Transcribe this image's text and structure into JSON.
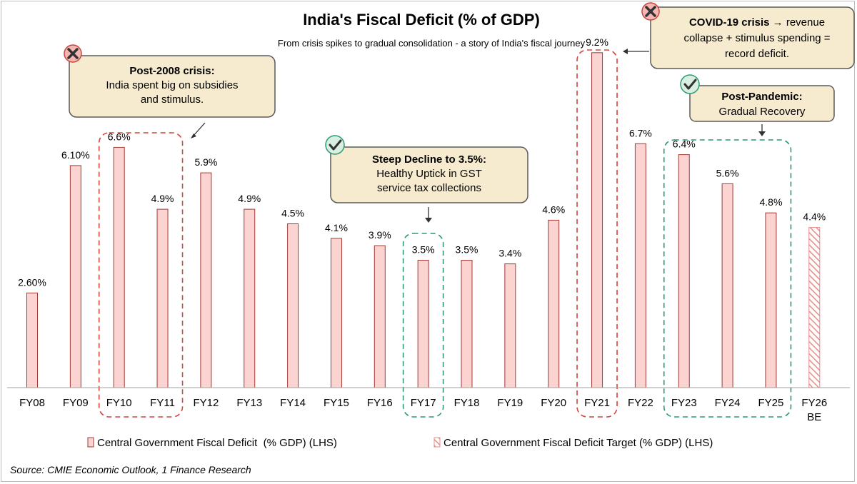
{
  "colors": {
    "bar_fill": "#fbd3d1",
    "bar_stroke": "#a33a35",
    "target_hatch": "#e98b87",
    "crisis_border": "#d0473c",
    "recovery_border": "#2e9a73",
    "callout_fill": "#f6ebcf",
    "callout_stroke": "#5a5a5a",
    "axis": "#a0a0a0"
  },
  "chart_data": {
    "type": "bar",
    "title": "India's Fiscal Deficit (% of GDP)",
    "subtitle": "From crisis spikes to gradual consolidation - a story of India's fiscal journey",
    "categories": [
      "FY08",
      "FY09",
      "FY10",
      "FY11",
      "FY12",
      "FY13",
      "FY14",
      "FY15",
      "FY16",
      "FY17",
      "FY18",
      "FY19",
      "FY20",
      "FY21",
      "FY22",
      "FY23",
      "FY24",
      "FY25",
      "FY26 BE"
    ],
    "series": [
      {
        "name": "Central Government Fiscal Deficit  (% GDP) (LHS)",
        "values": [
          2.6,
          6.1,
          6.6,
          4.9,
          5.9,
          4.9,
          4.5,
          4.1,
          3.9,
          3.5,
          3.5,
          3.4,
          4.6,
          9.2,
          6.7,
          6.4,
          5.6,
          4.8,
          null
        ],
        "labels": [
          "2.60%",
          "6.10%",
          "6.6%",
          "4.9%",
          "5.9%",
          "4.9%",
          "4.5%",
          "4.1%",
          "3.9%",
          "3.5%",
          "3.5%",
          "3.4%",
          "4.6%",
          "9.2%",
          "6.7%",
          "6.4%",
          "5.6%",
          "4.8%",
          ""
        ]
      },
      {
        "name": "Central Government Fiscal Deficit Target (% GDP) (LHS)",
        "values": [
          null,
          null,
          null,
          null,
          null,
          null,
          null,
          null,
          null,
          null,
          null,
          null,
          null,
          null,
          null,
          null,
          null,
          null,
          4.4
        ],
        "labels": [
          "",
          "",
          "",
          "",
          "",
          "",
          "",
          "",
          "",
          "",
          "",
          "",
          "",
          "",
          "",
          "",
          "",
          "",
          "4.4%"
        ]
      }
    ],
    "ylim": [
      0,
      10
    ],
    "grid": false,
    "legend_position": "bottom",
    "source": "Source: CMIE Economic Outlook, 1 Finance Research",
    "highlights": [
      {
        "type": "crisis",
        "from": "FY10",
        "to": "FY11"
      },
      {
        "type": "recovery",
        "from": "FY17",
        "to": "FY17"
      },
      {
        "type": "crisis",
        "from": "FY21",
        "to": "FY21"
      },
      {
        "type": "recovery",
        "from": "FY23",
        "to": "FY25"
      }
    ],
    "annotations": [
      {
        "icon": "cross-icon",
        "bold": "Post-2008 crisis:",
        "lines": [
          "India spent big on subsidies",
          "and stimulus."
        ]
      },
      {
        "icon": "check-icon",
        "bold": "Steep Decline to 3.5%:",
        "lines": [
          "Healthy Uptick in GST",
          "service tax collections"
        ]
      },
      {
        "icon": "cross-icon",
        "bold": "COVID-19 crisis",
        "bold_suffix": " → revenue",
        "lines": [
          "collapse + stimulus spending =",
          "record deficit."
        ]
      },
      {
        "icon": "check-icon",
        "bold": "Post-Pandemic:",
        "lines": [
          "Gradual Recovery"
        ]
      }
    ]
  }
}
